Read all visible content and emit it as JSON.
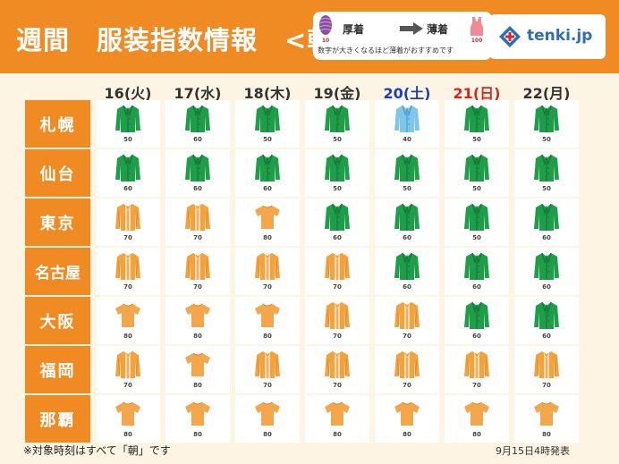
{
  "title": "週間　服装指数情報　<朝>",
  "legend": {
    "thick_label": "厚着",
    "thin_label": "薄着",
    "thick_num": "10",
    "thin_num": "100",
    "note": "数字が大きくなるほど薄着がおすすめです"
  },
  "brand": "tenki.jp",
  "days": [
    {
      "label": "16(火)",
      "type": "weekday"
    },
    {
      "label": "17(水)",
      "type": "weekday"
    },
    {
      "label": "18(木)",
      "type": "weekday"
    },
    {
      "label": "19(金)",
      "type": "weekday"
    },
    {
      "label": "20(土)",
      "type": "saturday"
    },
    {
      "label": "21(日)",
      "type": "sunday"
    },
    {
      "label": "22(月)",
      "type": "weekday"
    }
  ],
  "cities": [
    {
      "name": "札幌",
      "values": [
        "50",
        "60",
        "50",
        "50",
        "40",
        "50",
        "50"
      ]
    },
    {
      "name": "仙台",
      "values": [
        "60",
        "60",
        "60",
        "50",
        "50",
        "50",
        "50"
      ]
    },
    {
      "name": "東京",
      "values": [
        "70",
        "70",
        "80",
        "60",
        "60",
        "50",
        "60"
      ]
    },
    {
      "name": "名古屋",
      "values": [
        "70",
        "70",
        "70",
        "70",
        "60",
        "60",
        "60"
      ]
    },
    {
      "name": "大阪",
      "values": [
        "80",
        "80",
        "80",
        "70",
        "70",
        "60",
        "60"
      ]
    },
    {
      "name": "福岡",
      "values": [
        "70",
        "80",
        "70",
        "70",
        "70",
        "70",
        "70"
      ]
    },
    {
      "name": "那覇",
      "values": [
        "80",
        "80",
        "80",
        "80",
        "80",
        "80",
        "80"
      ]
    }
  ],
  "footnote": "※対象時刻はすべて「朝」です",
  "issued": "9月15日4時発表",
  "colors": {
    "header": "#f08a22",
    "background": "#fdf4e3",
    "jacket_green": "#1f9e4a",
    "light_coat": "#7fc6ea",
    "cardigan_orange": "#f3a33d",
    "tshirt_orange": "#f4a64a",
    "saturday": "#1a3fbf",
    "sunday": "#d6261f"
  }
}
